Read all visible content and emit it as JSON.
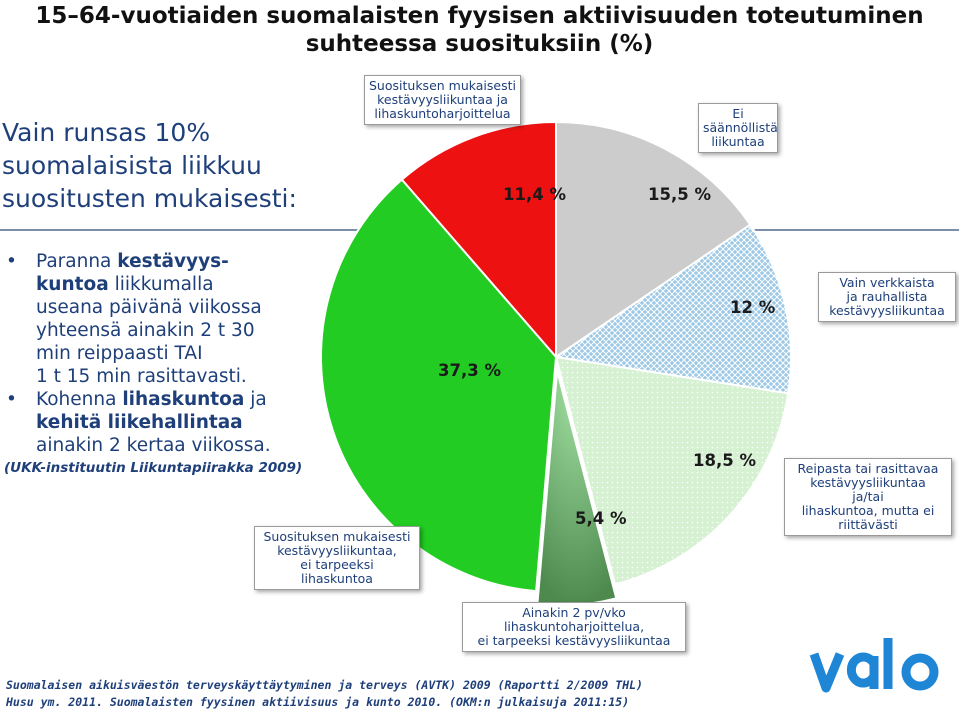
{
  "title": {
    "line1": "15–64-vuotiaiden suomalaisten fyysisen aktiivisuuden toteutuminen",
    "line2": "suhteessa suosituksiin (%)"
  },
  "intro": {
    "line1": "Vain runsas 10%",
    "line2": "suomalaisista liikkuu",
    "line3": "suositusten mukaisesti:"
  },
  "bullets": {
    "b1": {
      "r1a": "Paranna ",
      "r1b": "kestävyys-",
      "r2a": "kuntoa",
      "r2b": " liikkumalla",
      "r3": "useana päivänä viikossa",
      "r4": "yhteensä ainakin 2 t 30",
      "r5": "min reippaasti  TAI",
      "r6": "1 t 15 min rasittavasti."
    },
    "b2": {
      "r1a": "Kohenna ",
      "r1b": "lihaskuntoa",
      "r1c": " ja",
      "r2": "kehitä liikehallintaa",
      "r3": "ainakin 2 kertaa viikossa."
    },
    "marker": "•",
    "reference": "(UKK-instituutin Liikuntapiirakka 2009)"
  },
  "chart_data": {
    "type": "pie",
    "slices": [
      {
        "label": "Suosituksen mukaisesti kestävyysliikuntaa ja lihaskuntoharjoittelua",
        "value": 11.4,
        "label_text": "11,4 %",
        "color": "#ee1111",
        "pattern": "none"
      },
      {
        "label": "Ei säännöllistä liikuntaa",
        "value": 15.5,
        "label_text": "15,5 %",
        "color": "#cccccc",
        "pattern": "none"
      },
      {
        "label": "Vain verkkaista ja rauhallista kestävyysliikuntaa",
        "value": 12,
        "label_text": "12 %",
        "color": "#9cc8e6",
        "pattern": "crosshatch"
      },
      {
        "label": "Reipasta tai rasittavaa kestävyysliikuntaa ja/tai lihaskuntoa, mutta ei riittävästi",
        "value": 18.5,
        "label_text": "18,5 %",
        "color": "#cdeec8",
        "pattern": "dots"
      },
      {
        "label": "Ainakin 2 pv/vko lihaskuntoharjoittelua, ei tarpeeksi kestävyysliikuntaa",
        "value": 5.4,
        "label_text": "5,4 %",
        "color": "#8cd98c",
        "pattern": "none"
      },
      {
        "label": "Suosituksen mukaisesti kestävyysliikuntaa, ei tarpeeksi lihaskuntoa",
        "value": 37.3,
        "label_text": "37,3 %",
        "color": "#22cc22",
        "pattern": "none"
      }
    ]
  },
  "callouts": {
    "red": [
      "Suosituksen mukaisesti",
      "kestävyysliikuntaa ja",
      "lihaskuntoharjoittelua"
    ],
    "gray": [
      "Ei",
      "säännöllistä",
      "liikuntaa"
    ],
    "blue": [
      "Vain verkkaista",
      "ja rauhallista",
      "kestävyysliikuntaa"
    ],
    "lightgreen": [
      "Reipasta tai rasittavaa",
      "kestävyysliikuntaa",
      "ja/tai",
      "lihaskuntoa, mutta ei",
      "riittävästi"
    ],
    "midgreen": [
      "Ainakin 2 pv/vko",
      "lihaskuntoharjoittelua,",
      "ei tarpeeksi kestävyysliikuntaa"
    ],
    "green": [
      "Suosituksen mukaisesti",
      "kestävyysliikuntaa,",
      "ei tarpeeksi",
      "lihaskuntoa"
    ]
  },
  "source": {
    "line1": "Suomalaisen aikuisväestön terveyskäyttäytyminen ja terveys (AVTK) 2009 (Raportti 2/2009 THL)",
    "line2": "Husu ym. 2011. Suomalaisten fyysinen aktiivisuus ja kunto 2010. (OKM:n julkaisuja 2011:15)"
  },
  "logo": {
    "text": "valo",
    "color": "#1f86d6"
  }
}
